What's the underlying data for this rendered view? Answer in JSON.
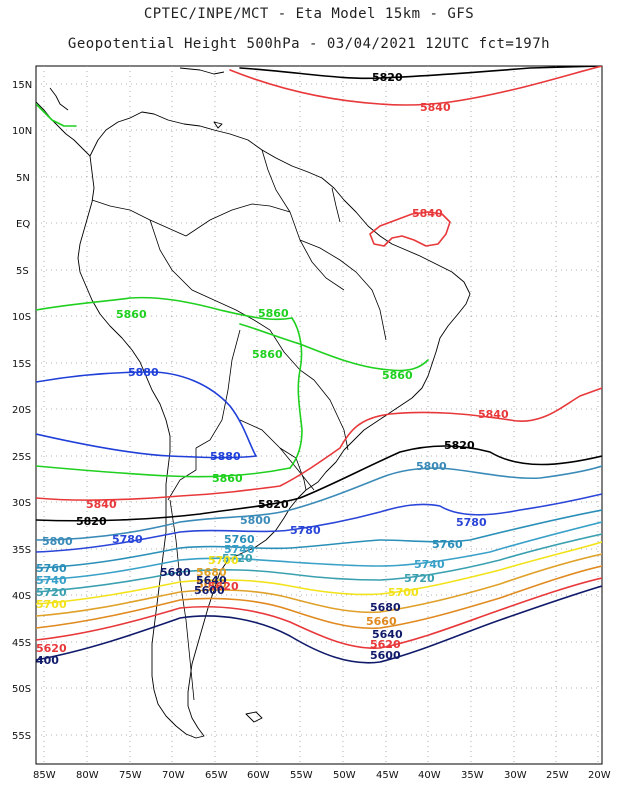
{
  "header": {
    "line1": "CPTEC/INPE/MCT  -   Eta Model 15km  -  GFS",
    "line2": "Geopotential Height 500hPa - 03/04/2021 12UTC fct=197h"
  },
  "axes": {
    "lat_labels": [
      "15N",
      "10N",
      "5N",
      "EQ",
      "5S",
      "10S",
      "15S",
      "20S",
      "25S",
      "30S",
      "35S",
      "40S",
      "45S",
      "50S",
      "55S"
    ],
    "lon_labels": [
      "85W",
      "80W",
      "75W",
      "70W",
      "65W",
      "60W",
      "55W",
      "50W",
      "45W",
      "40W",
      "35W",
      "30W",
      "25W",
      "20W"
    ]
  },
  "colors": {
    "5820": "#000000",
    "5840": "#e8383a",
    "5860": "#1fd01f",
    "5880": "#1f3fd8",
    "5800": "#3a8ab8",
    "5780": "#2a45d8",
    "5760": "#2a8fb8",
    "5740": "#39a0c8",
    "5720": "#3aa0b0",
    "5700": "#f2e21a",
    "5680": "#e0a12a",
    "5660": "#e08a20",
    "5620": "#e8383a",
    "5600": "#101a6a",
    "coast": "#000000",
    "grid": "#999999"
  },
  "contour_labels": [
    {
      "id": "l1",
      "text": "5820",
      "color": "5820"
    },
    {
      "id": "l2",
      "text": "5840",
      "color": "5840"
    },
    {
      "id": "l3",
      "text": "5840",
      "color": "5840"
    },
    {
      "id": "l4",
      "text": "5860",
      "color": "5860"
    },
    {
      "id": "l5",
      "text": "5860",
      "color": "5860"
    },
    {
      "id": "l6",
      "text": "5860",
      "color": "5860"
    },
    {
      "id": "l7",
      "text": "5860",
      "color": "5860"
    },
    {
      "id": "l8",
      "text": "5880",
      "color": "5880"
    },
    {
      "id": "l9",
      "text": "5880",
      "color": "5880"
    },
    {
      "id": "l10",
      "text": "5860",
      "color": "5860"
    },
    {
      "id": "l11",
      "text": "5840",
      "color": "5840"
    },
    {
      "id": "l12",
      "text": "5840",
      "color": "5840"
    },
    {
      "id": "l13",
      "text": "5820",
      "color": "5820"
    },
    {
      "id": "l14",
      "text": "5820",
      "color": "5820"
    },
    {
      "id": "l15",
      "text": "5820",
      "color": "5820"
    },
    {
      "id": "l16",
      "text": "5800",
      "color": "5800"
    },
    {
      "id": "l17",
      "text": "5800",
      "color": "5800"
    },
    {
      "id": "l18",
      "text": "5800",
      "color": "5800"
    },
    {
      "id": "l19",
      "text": "5780",
      "color": "5780"
    },
    {
      "id": "l20",
      "text": "5780",
      "color": "5780"
    },
    {
      "id": "l21",
      "text": "5780",
      "color": "5780"
    },
    {
      "id": "l22",
      "text": "5760",
      "color": "5760"
    },
    {
      "id": "l23",
      "text": "5760",
      "color": "5760"
    },
    {
      "id": "l24",
      "text": "5760",
      "color": "5760"
    },
    {
      "id": "l25",
      "text": "5740",
      "color": "5740"
    },
    {
      "id": "l26",
      "text": "5740",
      "color": "5740"
    },
    {
      "id": "l27",
      "text": "5740",
      "color": "5740"
    },
    {
      "id": "l28",
      "text": "5720",
      "color": "5720"
    },
    {
      "id": "l29",
      "text": "5720",
      "color": "5720"
    },
    {
      "id": "l30",
      "text": "5720",
      "color": "5720"
    },
    {
      "id": "l31",
      "text": "5700",
      "color": "5700"
    },
    {
      "id": "l32",
      "text": "5700",
      "color": "5700"
    },
    {
      "id": "l33",
      "text": "5700",
      "color": "5700"
    },
    {
      "id": "l34",
      "text": "5680",
      "color": "5680"
    },
    {
      "id": "l35",
      "text": "5680",
      "color": "5600"
    },
    {
      "id": "l36",
      "text": "5680",
      "color": "5600"
    },
    {
      "id": "l37",
      "text": "5660",
      "color": "5660"
    },
    {
      "id": "l38",
      "text": "5660",
      "color": "5660"
    },
    {
      "id": "l39",
      "text": "5640",
      "color": "5600"
    },
    {
      "id": "l40",
      "text": "5640",
      "color": "5600"
    },
    {
      "id": "l41",
      "text": "5620",
      "color": "5620"
    },
    {
      "id": "l42",
      "text": "5620",
      "color": "5620"
    },
    {
      "id": "l43",
      "text": "5620",
      "color": "5620"
    },
    {
      "id": "l44",
      "text": "5600",
      "color": "5600"
    },
    {
      "id": "l45",
      "text": "5600",
      "color": "5600"
    },
    {
      "id": "l46",
      "text": "400",
      "color": "5600"
    }
  ]
}
